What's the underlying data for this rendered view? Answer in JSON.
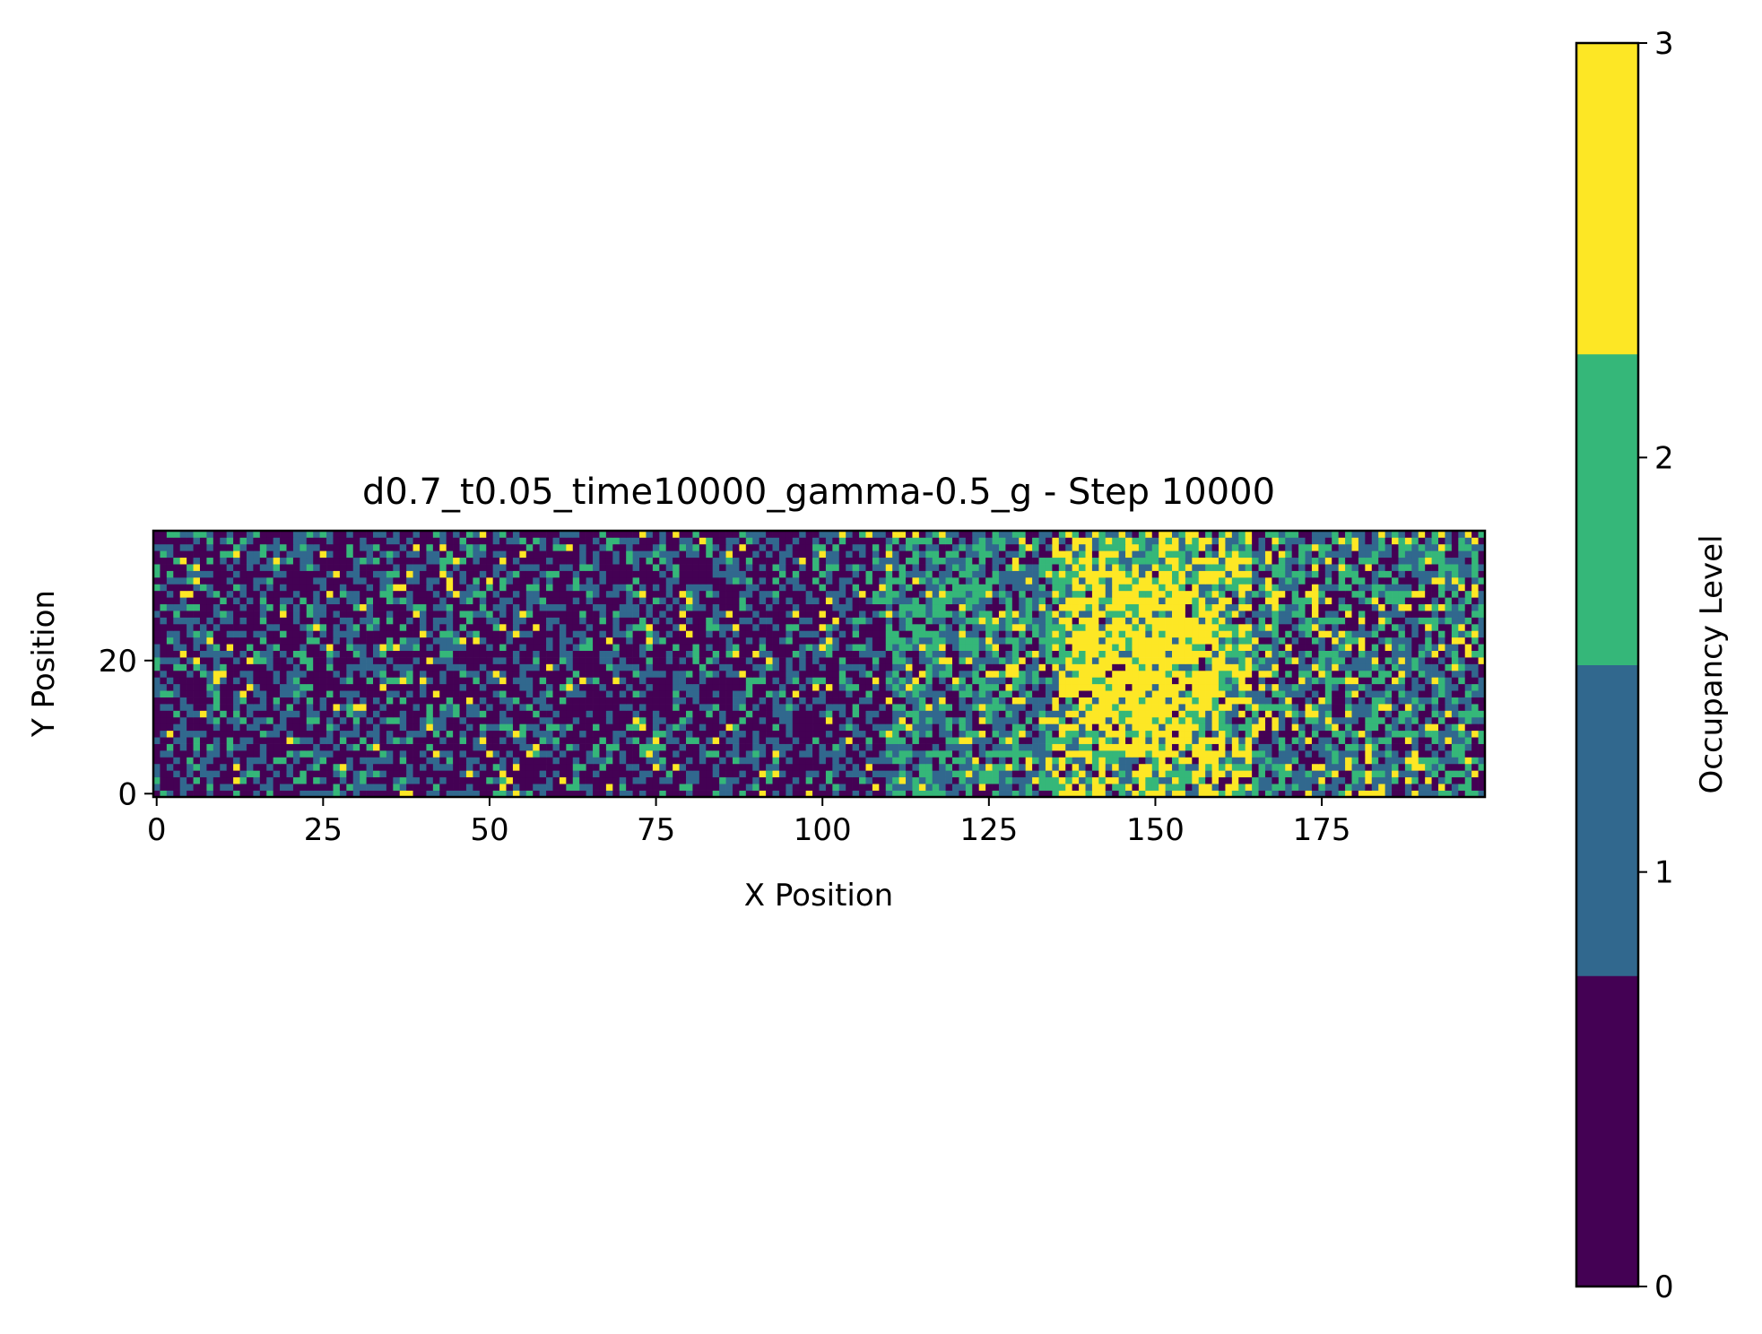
{
  "chart_data": {
    "type": "heatmap",
    "title": "d0.7_t0.05_time10000_gamma-0.5_g - Step 10000",
    "xlabel": "X Position",
    "ylabel": "Y Position",
    "xlim": [
      0,
      200
    ],
    "ylim": [
      0,
      40
    ],
    "grid_width": 200,
    "grid_height": 40,
    "x_ticks": [
      0,
      25,
      50,
      75,
      100,
      125,
      150,
      175
    ],
    "x_tick_labels": [
      "0",
      "25",
      "50",
      "75",
      "100",
      "125",
      "150",
      "175"
    ],
    "y_ticks": [
      0,
      20
    ],
    "y_tick_labels": [
      "0",
      "20"
    ],
    "colorbar": {
      "label": "Occupancy Level",
      "levels": [
        0,
        1,
        2,
        3
      ],
      "tick_labels": [
        "0",
        "1",
        "2",
        "3"
      ],
      "colors": [
        "#440154",
        "#31688e",
        "#35b779",
        "#fde725"
      ]
    },
    "value_distribution_by_x": [
      {
        "x_range": [
          0,
          110
        ],
        "share_level_0": 0.55,
        "share_level_1": 0.3,
        "share_level_2": 0.12,
        "share_level_3": 0.03
      },
      {
        "x_range": [
          110,
          135
        ],
        "share_level_0": 0.25,
        "share_level_1": 0.35,
        "share_level_2": 0.32,
        "share_level_3": 0.08
      },
      {
        "x_range": [
          135,
          165
        ],
        "share_level_0": 0.1,
        "share_level_1": 0.2,
        "share_level_2": 0.3,
        "share_level_3": 0.4
      },
      {
        "x_range": [
          165,
          200
        ],
        "share_level_0": 0.3,
        "share_level_1": 0.35,
        "share_level_2": 0.25,
        "share_level_3": 0.1
      }
    ],
    "dense_region": {
      "level": 3,
      "x_range": [
        136,
        160
      ],
      "y_range": [
        5,
        35
      ]
    }
  }
}
